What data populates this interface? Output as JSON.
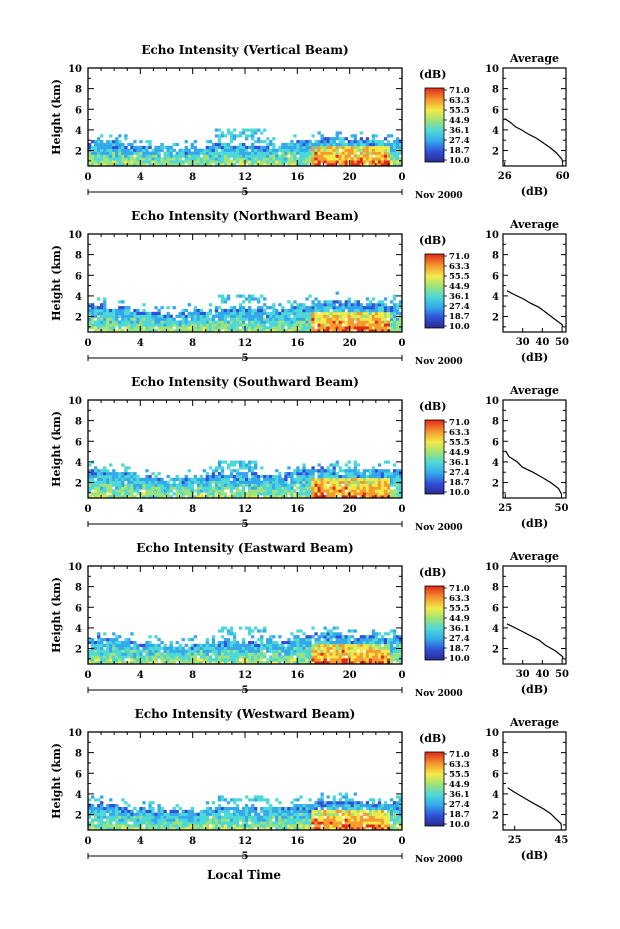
{
  "figure": {
    "xlabel": "Local Time",
    "colorbar_unit": "(dB)",
    "colorbar_ticks": [
      "71.0",
      "63.3",
      "55.5",
      "44.9",
      "36.1",
      "27.4",
      "18.7",
      "10.0"
    ],
    "date_label": "Nov 2000",
    "day_marker": "5",
    "height_label": "Height (km)",
    "profile_title": "Average",
    "profile_xlabel": "(dB)",
    "colors": {
      "scale": [
        "#2a2a90",
        "#3050d8",
        "#34a8ea",
        "#4cd8d8",
        "#9ee27a",
        "#f2ea48",
        "#f59a30",
        "#e02818"
      ]
    }
  },
  "chart_data": [
    {
      "type": "heatmap",
      "title": "Echo Intensity (Vertical Beam)",
      "x_ticks": [
        "0",
        "4",
        "8",
        "12",
        "16",
        "20",
        "0"
      ],
      "y_ticks": [
        "10",
        "8",
        "6",
        "4",
        "2"
      ],
      "xlim": [
        0,
        24
      ],
      "ylim": [
        0.5,
        10
      ],
      "echo_top_km": [
        2.8,
        2.9,
        2.8,
        2.7,
        2.5,
        2.4,
        2.2,
        2.1,
        2.2,
        2.4,
        2.6,
        2.6,
        2.7,
        2.6,
        2.5,
        2.6,
        2.8,
        3.0,
        3.2,
        3.3,
        3.2,
        3.1,
        3.0,
        3.0
      ],
      "upper_layer": {
        "x": [
          9.5,
          13.5
        ],
        "y": [
          3.3,
          4.2
        ]
      },
      "profile": {
        "x": [
          26,
          30,
          32,
          36,
          40,
          44,
          48,
          52,
          56,
          60,
          60
        ],
        "y": [
          5.1,
          4.7,
          4.3,
          4.0,
          3.6,
          3.2,
          2.8,
          2.3,
          1.8,
          1.2,
          0.9
        ],
        "xlim": [
          25,
          62
        ],
        "x_ticks": [
          "26",
          "60"
        ]
      }
    },
    {
      "type": "heatmap",
      "title": "Echo Intensity (Northward Beam)",
      "x_ticks": [
        "0",
        "4",
        "8",
        "12",
        "16",
        "20",
        "0"
      ],
      "y_ticks": [
        "10",
        "8",
        "6",
        "4",
        "2"
      ],
      "xlim": [
        0,
        24
      ],
      "ylim": [
        0.5,
        10
      ],
      "echo_top_km": [
        3.2,
        3.1,
        2.9,
        2.8,
        2.6,
        2.5,
        2.3,
        2.3,
        2.4,
        2.6,
        2.7,
        2.8,
        2.8,
        2.7,
        2.6,
        2.7,
        3.0,
        3.3,
        3.5,
        3.5,
        3.4,
        3.3,
        3.2,
        3.2
      ],
      "upper_layer": {
        "x": [
          10,
          13.5
        ],
        "y": [
          3.5,
          4.0
        ]
      },
      "profile": {
        "x": [
          22,
          26,
          30,
          34,
          38,
          42,
          46,
          50,
          50
        ],
        "y": [
          4.5,
          4.1,
          3.7,
          3.3,
          2.9,
          2.4,
          1.8,
          1.2,
          0.9
        ],
        "xlim": [
          20,
          52
        ],
        "x_ticks": [
          "30",
          "40",
          "50"
        ]
      }
    },
    {
      "type": "heatmap",
      "title": "Echo Intensity (Southward Beam)",
      "x_ticks": [
        "0",
        "4",
        "8",
        "12",
        "16",
        "20",
        "0"
      ],
      "y_ticks": [
        "10",
        "8",
        "6",
        "4",
        "2"
      ],
      "xlim": [
        0,
        24
      ],
      "ylim": [
        0.5,
        10
      ],
      "echo_top_km": [
        3.3,
        3.2,
        3.1,
        2.9,
        2.7,
        2.5,
        2.4,
        2.4,
        2.5,
        2.6,
        2.8,
        2.9,
        2.9,
        2.8,
        2.7,
        2.8,
        3.1,
        3.3,
        3.5,
        3.5,
        3.4,
        3.3,
        3.3,
        3.3
      ],
      "upper_layer": {
        "x": [
          10,
          13
        ],
        "y": [
          3.4,
          4.1
        ]
      },
      "profile": {
        "x": [
          25,
          27,
          30,
          33,
          37,
          41,
          45,
          49,
          50
        ],
        "y": [
          5.1,
          4.5,
          4.0,
          3.5,
          3.0,
          2.5,
          2.0,
          1.4,
          0.9
        ],
        "xlim": [
          24,
          52
        ],
        "x_ticks": [
          "25",
          "50"
        ]
      }
    },
    {
      "type": "heatmap",
      "title": "Echo Intensity (Eastward Beam)",
      "x_ticks": [
        "0",
        "4",
        "8",
        "12",
        "16",
        "20",
        "0"
      ],
      "y_ticks": [
        "10",
        "8",
        "6",
        "4",
        "2"
      ],
      "xlim": [
        0,
        24
      ],
      "ylim": [
        0.5,
        10
      ],
      "echo_top_km": [
        3.1,
        3.0,
        2.9,
        2.8,
        2.6,
        2.5,
        2.3,
        2.3,
        2.4,
        2.6,
        2.7,
        2.8,
        2.8,
        2.7,
        2.6,
        2.7,
        3.0,
        3.2,
        3.4,
        3.4,
        3.3,
        3.2,
        3.2,
        3.2
      ],
      "upper_layer": {
        "x": [
          10,
          13.5
        ],
        "y": [
          3.5,
          4.0
        ]
      },
      "profile": {
        "x": [
          22,
          26,
          30,
          34,
          38,
          42,
          46,
          50,
          50
        ],
        "y": [
          4.4,
          4.0,
          3.6,
          3.2,
          2.8,
          2.3,
          1.8,
          1.2,
          0.9
        ],
        "xlim": [
          20,
          52
        ],
        "x_ticks": [
          "30",
          "40",
          "50"
        ]
      }
    },
    {
      "type": "heatmap",
      "title": "Echo Intensity (Westward Beam)",
      "x_ticks": [
        "0",
        "4",
        "8",
        "12",
        "16",
        "20",
        "0"
      ],
      "y_ticks": [
        "10",
        "8",
        "6",
        "4",
        "2"
      ],
      "xlim": [
        0,
        24
      ],
      "ylim": [
        0.5,
        10
      ],
      "echo_top_km": [
        3.1,
        3.0,
        2.9,
        2.7,
        2.6,
        2.4,
        2.3,
        2.3,
        2.4,
        2.5,
        2.7,
        2.7,
        2.7,
        2.6,
        2.6,
        2.7,
        2.9,
        3.1,
        3.3,
        3.4,
        3.3,
        3.2,
        3.1,
        3.1
      ],
      "upper_layer": {
        "x": [
          10,
          13.5
        ],
        "y": [
          3.3,
          3.8
        ]
      },
      "profile": {
        "x": [
          22,
          25,
          28,
          31,
          34,
          37,
          40,
          43,
          45,
          45
        ],
        "y": [
          4.6,
          4.2,
          3.8,
          3.4,
          3.0,
          2.6,
          2.1,
          1.6,
          1.1,
          0.9
        ],
        "xlim": [
          20,
          47
        ],
        "x_ticks": [
          "25",
          "45"
        ]
      }
    }
  ]
}
